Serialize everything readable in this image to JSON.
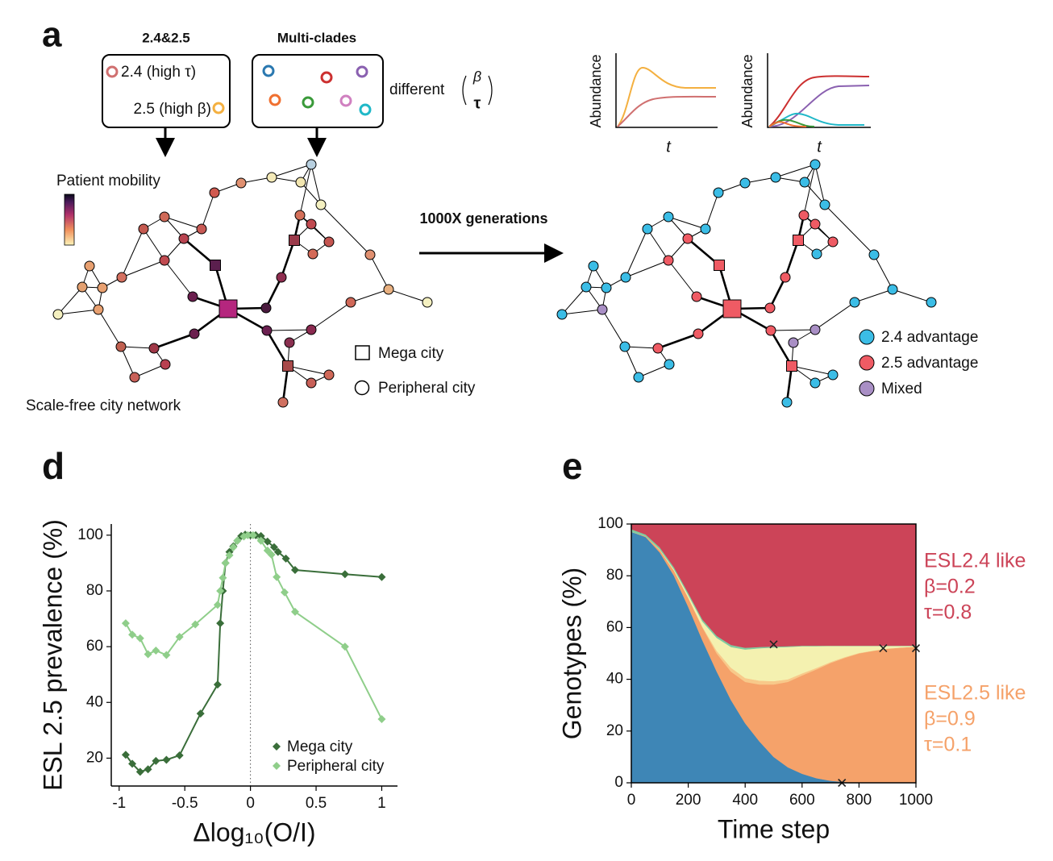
{
  "panel_a": {
    "label": "a",
    "box1_title": "2.4&2.5",
    "box1_items": [
      "2.4 (high τ)",
      "2.5 (high β)"
    ],
    "box2_title": "Multi-clades",
    "different": "different",
    "ratio_top": "β",
    "ratio_bottom": "τ",
    "mobility_label": "Patient mobility",
    "network_label": "Scale-free city network",
    "node_legend": [
      "Mega city",
      "Peripheral city"
    ],
    "arrow_label": "1000X generations",
    "inset_ylabel": "Abundance",
    "inset_xlabel": "t",
    "outcome_legend": [
      {
        "label": "2.4 advantage",
        "color": "#3bbde6"
      },
      {
        "label": "2.5 advantage",
        "color": "#ef5b64"
      },
      {
        "label": "Mixed",
        "color": "#a98fc5"
      }
    ]
  },
  "chart_data": [
    {
      "type": "line",
      "panel_label": "d",
      "xlabel": "Δlog₁₀(O/I)",
      "ylabel": "ESL 2.5 prevalence (%)",
      "xlim": [
        -1.06,
        1.12
      ],
      "xticks": [
        -1,
        -0.5,
        0,
        0.5,
        1
      ],
      "ylim": [
        10,
        104
      ],
      "yticks": [
        20,
        40,
        60,
        80,
        100
      ],
      "vline": 0,
      "legend": "lower right",
      "series": [
        {
          "name": "Mega city",
          "color": "#3a6e3a",
          "x": [
            -0.95,
            -0.9,
            -0.84,
            -0.78,
            -0.72,
            -0.64,
            -0.54,
            -0.38,
            -0.25,
            -0.23,
            -0.21,
            -0.19,
            -0.16,
            -0.13,
            -0.1,
            -0.07,
            -0.04,
            0,
            0.04,
            0.08,
            0.13,
            0.18,
            0.21,
            0.27,
            0.34,
            0.72,
            1
          ],
          "values": [
            21.2,
            18,
            15.1,
            16,
            19,
            19.4,
            21,
            36,
            46.4,
            68.4,
            80,
            90,
            94,
            96,
            98,
            99.7,
            100.2,
            100,
            100,
            99.7,
            97.7,
            95.7,
            94,
            91.6,
            87.5,
            86,
            85
          ]
        },
        {
          "name": "Peripheral city",
          "color": "#8fce8a",
          "x": [
            -0.95,
            -0.9,
            -0.84,
            -0.78,
            -0.72,
            -0.64,
            -0.54,
            -0.42,
            -0.25,
            -0.23,
            -0.21,
            -0.19,
            -0.16,
            -0.13,
            -0.1,
            -0.05,
            -0.02,
            0.02,
            0.08,
            0.13,
            0.16,
            0.2,
            0.26,
            0.34,
            0.72,
            1
          ],
          "values": [
            68.4,
            64.3,
            63,
            57.3,
            58.6,
            57,
            63.5,
            68,
            75,
            80,
            84.7,
            90,
            92.8,
            95.7,
            98,
            99.5,
            100,
            100,
            98,
            94.5,
            93,
            85,
            79.5,
            72.5,
            60,
            34
          ]
        }
      ]
    },
    {
      "type": "area",
      "panel_label": "e",
      "xlabel": "Time step",
      "ylabel": "Genotypes (%)",
      "xlim": [
        0,
        1000
      ],
      "xticks": [
        0,
        200,
        400,
        600,
        800,
        1000
      ],
      "ylim": [
        0,
        100
      ],
      "yticks": [
        0,
        20,
        40,
        60,
        80,
        100
      ],
      "x": [
        0,
        50,
        100,
        150,
        200,
        250,
        300,
        350,
        400,
        450,
        500,
        550,
        600,
        650,
        700,
        750,
        800,
        850,
        900,
        950,
        1000
      ],
      "series": [
        {
          "color": "#3e86b6",
          "values": [
            97,
            95,
            89,
            80,
            68,
            55,
            43,
            32,
            23,
            16,
            10,
            6,
            3.5,
            1.8,
            0.8,
            0.3,
            0,
            0,
            0,
            0,
            0
          ]
        },
        {
          "color": "#f5a26a",
          "values": [
            0,
            0.3,
            1,
            2,
            3.5,
            5,
            7,
            11,
            16,
            22,
            28,
            33,
            38,
            42,
            45.5,
            48,
            50,
            51,
            51.8,
            52.3,
            52.6
          ]
        },
        {
          "color": "#f8c98a",
          "values": [
            0,
            0,
            0,
            0,
            0.1,
            0.3,
            1,
            1.5,
            1.5,
            1.5,
            1.3,
            1,
            0.8,
            0.6,
            0.4,
            0.3,
            0.2,
            0.1,
            0.1,
            0,
            0
          ]
        },
        {
          "color": "#f4f1b0",
          "values": [
            0,
            0,
            0.2,
            0.5,
            1,
            2,
            5,
            8,
            11,
            12.5,
            13,
            12.5,
            10.5,
            8.4,
            6.2,
            4.3,
            2.7,
            1.8,
            1,
            0.6,
            0.3
          ]
        },
        {
          "color": "#7fcba0",
          "values": [
            1,
            0.7,
            0.8,
            0.8,
            0.8,
            0.8,
            0.8,
            0.8,
            0.7,
            0.5,
            0.4,
            0.3,
            0.2,
            0.2,
            0.1,
            0.1,
            0.1,
            0.1,
            0.1,
            0.1,
            0.1
          ]
        },
        {
          "color": "#cc4458",
          "values": [
            2,
            4,
            9,
            16.7,
            26.6,
            36.9,
            43.2,
            46.7,
            47.8,
            47.5,
            47.3,
            47.2,
            47,
            47,
            47,
            47,
            47,
            47,
            47,
            47,
            47
          ]
        }
      ],
      "crosses": [
        {
          "x": 500,
          "y": 53.5
        },
        {
          "x": 740,
          "y": 0
        },
        {
          "x": 885,
          "y": 52
        },
        {
          "x": 1000,
          "y": 52
        }
      ],
      "annotations": [
        {
          "color": "#cc4458",
          "lines": [
            "ESL2.4 like",
            "β=0.2",
            "τ=0.8"
          ]
        },
        {
          "color": "#f5a26a",
          "lines": [
            "ESL2.5 like",
            "β=0.9",
            "τ=0.1"
          ]
        }
      ]
    }
  ]
}
